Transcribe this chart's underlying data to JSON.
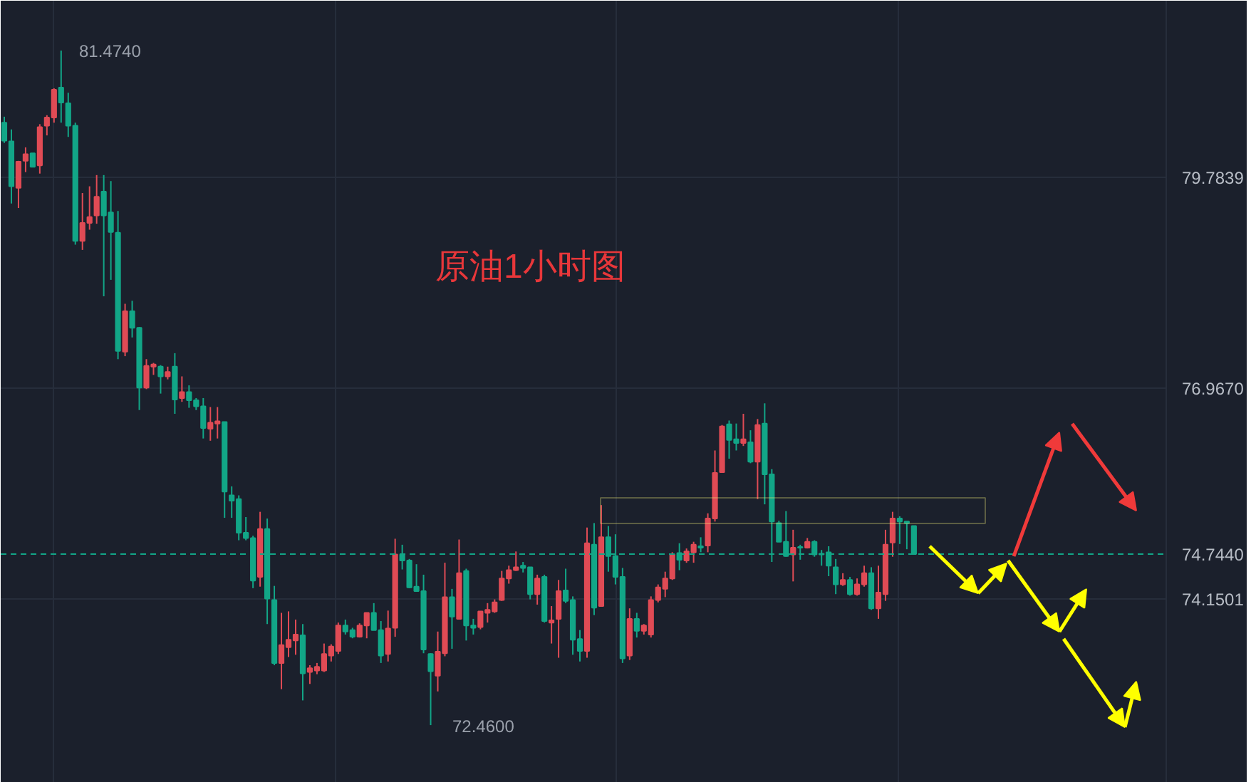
{
  "chart_data": {
    "type": "candlestick",
    "title": "原油1小时图",
    "categories": [
      null,
      null,
      null,
      null,
      null,
      null,
      null,
      null,
      null,
      null,
      null,
      null,
      null,
      null,
      null,
      null,
      null,
      null,
      null,
      null,
      null,
      null,
      null,
      null,
      null,
      null,
      null,
      null,
      null,
      null,
      null,
      null,
      null,
      null,
      null,
      null,
      null,
      null,
      null,
      null,
      null,
      null,
      null,
      null,
      null,
      null,
      null,
      null,
      null,
      null,
      null,
      null,
      null,
      null,
      null,
      null,
      null,
      null,
      null,
      null,
      null,
      null,
      null,
      null,
      null,
      null,
      null,
      null,
      null,
      null,
      null,
      null,
      null,
      null,
      null,
      null,
      null,
      null,
      null,
      null,
      null,
      null,
      null,
      null,
      null,
      null,
      null,
      null,
      null,
      null,
      null,
      null,
      null,
      null,
      null,
      null,
      null,
      null,
      null,
      null,
      null,
      null,
      null,
      null,
      null,
      null,
      null,
      null,
      null,
      null,
      null,
      null,
      null,
      null,
      null,
      null,
      null,
      null,
      null,
      null,
      null,
      null,
      null,
      null,
      null,
      null,
      null,
      null,
      null,
      null,
      null,
      null,
      null,
      null,
      null,
      null,
      null,
      null,
      null,
      null,
      null,
      null,
      null,
      null,
      null,
      null,
      null,
      null,
      null,
      null,
      null,
      null,
      null,
      null,
      null,
      null,
      null,
      null,
      null,
      null,
      null,
      null,
      null,
      null
    ],
    "ohlc": [
      [
        80.51,
        80.59,
        80.24,
        80.27
      ],
      [
        80.26,
        80.42,
        79.43,
        79.66
      ],
      [
        79.64,
        80.0,
        79.37,
        79.99
      ],
      [
        80.0,
        80.18,
        79.85,
        80.09
      ],
      [
        80.1,
        80.1,
        79.92,
        79.92
      ],
      [
        79.94,
        80.49,
        79.83,
        80.45
      ],
      [
        80.47,
        80.61,
        80.34,
        80.58
      ],
      [
        80.58,
        80.97,
        80.51,
        80.95
      ],
      [
        80.98,
        81.474,
        80.51,
        80.78
      ],
      [
        80.77,
        80.91,
        80.32,
        80.47
      ],
      [
        80.47,
        80.51,
        78.88,
        78.93
      ],
      [
        78.93,
        79.57,
        78.81,
        79.17
      ],
      [
        79.17,
        79.66,
        79.08,
        79.25
      ],
      [
        79.27,
        79.81,
        79.16,
        79.52
      ],
      [
        79.59,
        79.81,
        78.19,
        79.27
      ],
      [
        79.31,
        79.73,
        78.41,
        79.05
      ],
      [
        79.04,
        79.33,
        77.35,
        77.46
      ],
      [
        77.45,
        78.09,
        77.39,
        77.99
      ],
      [
        77.99,
        78.13,
        77.64,
        77.77
      ],
      [
        77.77,
        77.78,
        76.67,
        76.97
      ],
      [
        76.97,
        77.35,
        76.95,
        77.26
      ],
      [
        77.25,
        77.3,
        77.14,
        77.28
      ],
      [
        77.25,
        77.27,
        76.89,
        77.12
      ],
      [
        77.12,
        77.25,
        77.08,
        77.18
      ],
      [
        77.25,
        77.43,
        76.62,
        76.81
      ],
      [
        76.83,
        77.12,
        76.78,
        76.91
      ],
      [
        76.91,
        77.0,
        76.7,
        76.8
      ],
      [
        76.8,
        76.83,
        76.67,
        76.72
      ],
      [
        76.72,
        76.83,
        76.29,
        76.43
      ],
      [
        76.42,
        76.71,
        76.26,
        76.5
      ],
      [
        76.49,
        76.71,
        76.29,
        76.52
      ],
      [
        76.51,
        76.51,
        75.23,
        75.58
      ],
      [
        75.53,
        75.65,
        75.23,
        75.46
      ],
      [
        75.48,
        75.53,
        74.93,
        75.03
      ],
      [
        75.03,
        75.24,
        74.93,
        74.96
      ],
      [
        74.96,
        74.99,
        74.29,
        74.39
      ],
      [
        74.44,
        75.31,
        74.31,
        75.08
      ],
      [
        75.08,
        75.22,
        73.81,
        74.15
      ],
      [
        74.13,
        74.32,
        73.26,
        73.29
      ],
      [
        73.29,
        73.96,
        72.94,
        73.53
      ],
      [
        73.5,
        73.98,
        73.37,
        73.6
      ],
      [
        73.59,
        73.87,
        73.4,
        73.67
      ],
      [
        73.66,
        73.81,
        72.79,
        73.15
      ],
      [
        73.17,
        73.26,
        73.01,
        73.22
      ],
      [
        73.19,
        73.29,
        73.14,
        73.24
      ],
      [
        73.19,
        73.55,
        73.17,
        73.41
      ],
      [
        73.39,
        73.54,
        73.31,
        73.51
      ],
      [
        73.45,
        73.83,
        73.41,
        73.79
      ],
      [
        73.79,
        73.87,
        73.67,
        73.71
      ],
      [
        73.73,
        73.76,
        73.62,
        73.64
      ],
      [
        73.64,
        73.82,
        73.63,
        73.79
      ],
      [
        73.79,
        73.96,
        73.62,
        73.96
      ],
      [
        73.96,
        74.09,
        73.73,
        73.73
      ],
      [
        73.73,
        73.85,
        73.29,
        73.39
      ],
      [
        73.41,
        73.99,
        73.31,
        73.75
      ],
      [
        73.76,
        74.95,
        73.64,
        74.74
      ],
      [
        74.74,
        74.87,
        74.54,
        74.66
      ],
      [
        74.66,
        74.68,
        74.29,
        74.3
      ],
      [
        74.31,
        74.61,
        74.25,
        74.25
      ],
      [
        74.25,
        74.47,
        73.42,
        73.47
      ],
      [
        73.41,
        73.42,
        72.46,
        73.18
      ],
      [
        73.12,
        73.71,
        72.91,
        73.44
      ],
      [
        73.42,
        74.63,
        73.38,
        74.17
      ],
      [
        74.17,
        74.28,
        73.48,
        73.91
      ],
      [
        73.88,
        74.94,
        73.88,
        74.49
      ],
      [
        74.52,
        74.55,
        73.59,
        73.79
      ],
      [
        73.79,
        73.88,
        73.67,
        73.76
      ],
      [
        73.77,
        73.98,
        73.74,
        73.98
      ],
      [
        73.96,
        74.09,
        73.83,
        74.0
      ],
      [
        73.98,
        74.14,
        73.96,
        74.1
      ],
      [
        74.13,
        74.52,
        74.12,
        74.42
      ],
      [
        74.42,
        74.59,
        74.35,
        74.53
      ],
      [
        74.53,
        74.78,
        74.52,
        74.57
      ],
      [
        74.59,
        74.64,
        74.5,
        74.56
      ],
      [
        74.57,
        74.57,
        74.14,
        74.21
      ],
      [
        74.21,
        74.47,
        74.07,
        74.42
      ],
      [
        74.44,
        74.47,
        73.83,
        73.85
      ],
      [
        73.83,
        74.05,
        73.55,
        73.86
      ],
      [
        73.88,
        74.4,
        73.36,
        74.25
      ],
      [
        74.26,
        74.55,
        74.09,
        74.12
      ],
      [
        74.13,
        74.18,
        73.4,
        73.6
      ],
      [
        73.61,
        73.73,
        73.31,
        73.45
      ],
      [
        73.45,
        75.1,
        73.36,
        74.89
      ],
      [
        74.87,
        75.16,
        73.93,
        74.03
      ],
      [
        74.05,
        75.4,
        74.05,
        74.97
      ],
      [
        74.97,
        75.12,
        74.51,
        74.72
      ],
      [
        74.72,
        75.01,
        74.34,
        74.44
      ],
      [
        74.44,
        74.56,
        73.29,
        73.35
      ],
      [
        73.39,
        74.02,
        73.33,
        73.88
      ],
      [
        73.88,
        73.96,
        73.63,
        73.72
      ],
      [
        73.72,
        73.81,
        73.67,
        73.79
      ],
      [
        73.67,
        74.18,
        73.63,
        74.13
      ],
      [
        74.13,
        74.34,
        74.1,
        74.3
      ],
      [
        74.28,
        74.51,
        74.17,
        74.42
      ],
      [
        74.42,
        74.77,
        74.4,
        74.74
      ],
      [
        74.76,
        74.89,
        74.53,
        74.67
      ],
      [
        74.66,
        74.82,
        74.63,
        74.78
      ],
      [
        74.77,
        74.91,
        74.63,
        74.87
      ],
      [
        74.85,
        74.97,
        74.77,
        74.83
      ],
      [
        74.86,
        75.29,
        74.77,
        75.22
      ],
      [
        75.22,
        76.13,
        75.18,
        75.83
      ],
      [
        75.84,
        76.47,
        75.84,
        76.45
      ],
      [
        76.48,
        76.53,
        76.02,
        76.27
      ],
      [
        76.28,
        76.49,
        76.13,
        76.23
      ],
      [
        76.23,
        76.62,
        76.19,
        76.28
      ],
      [
        76.24,
        76.4,
        75.96,
        75.98
      ],
      [
        75.98,
        76.55,
        75.48,
        76.47
      ],
      [
        76.49,
        76.76,
        75.41,
        75.81
      ],
      [
        75.81,
        75.88,
        74.64,
        75.18
      ],
      [
        75.16,
        75.19,
        74.91,
        74.91
      ],
      [
        74.91,
        75.32,
        74.71,
        74.72
      ],
      [
        74.74,
        75.07,
        74.38,
        74.83
      ],
      [
        74.84,
        74.87,
        74.67,
        74.83
      ],
      [
        74.83,
        74.96,
        74.82,
        74.91
      ],
      [
        74.91,
        74.93,
        74.71,
        74.74
      ],
      [
        74.75,
        74.8,
        74.59,
        74.74
      ],
      [
        74.77,
        74.85,
        74.45,
        74.59
      ],
      [
        74.57,
        74.68,
        74.21,
        74.34
      ],
      [
        74.34,
        74.49,
        74.32,
        74.4
      ],
      [
        74.4,
        74.44,
        74.19,
        74.21
      ],
      [
        74.21,
        74.42,
        74.19,
        74.34
      ],
      [
        74.34,
        74.59,
        74.31,
        74.49
      ],
      [
        74.49,
        74.57,
        74.0,
        74.02
      ],
      [
        74.02,
        74.59,
        73.88,
        74.23
      ],
      [
        74.21,
        75.07,
        74.12,
        74.87
      ],
      [
        74.9,
        75.31,
        74.71,
        75.22
      ],
      [
        75.22,
        75.25,
        74.88,
        75.18
      ],
      [
        75.18,
        75.18,
        74.81,
        75.16
      ],
      [
        75.12,
        75.12,
        74.744,
        74.744
      ],
      null,
      null,
      null,
      null,
      null,
      null,
      null,
      null,
      null,
      null,
      null,
      null,
      null,
      null,
      null,
      null,
      null,
      null,
      null,
      null,
      null,
      null,
      null,
      null,
      null,
      null,
      null,
      null,
      null,
      null,
      null,
      null,
      null,
      null,
      null
    ],
    "colors": [
      "#12a687",
      "#12a687",
      "#e04b55",
      "#e04b55",
      "#12a687",
      "#e04b55",
      "#e04b55",
      "#e04b55",
      "#12a687",
      "#12a687",
      "#12a687",
      "#e04b55",
      "#e04b55",
      "#e04b55",
      "#12a687",
      "#12a687",
      "#12a687",
      "#e04b55",
      "#12a687",
      "#12a687",
      "#e04b55",
      "#e04b55",
      "#12a687",
      "#e04b55",
      "#12a687",
      "#e04b55",
      "#12a687",
      "#12a687",
      "#12a687",
      "#e04b55",
      "#e04b55",
      "#12a687",
      "#12a687",
      "#12a687",
      "#12a687",
      "#12a687",
      "#e04b55",
      "#12a687",
      "#12a687",
      "#e04b55",
      "#e04b55",
      "#e04b55",
      "#12a687",
      "#e04b55",
      "#e04b55",
      "#e04b55",
      "#e04b55",
      "#e04b55",
      "#12a687",
      "#12a687",
      "#e04b55",
      "#e04b55",
      "#12a687",
      "#12a687",
      "#e04b55",
      "#e04b55",
      "#12a687",
      "#12a687",
      "#12a687",
      "#12a687",
      "#12a687",
      "#e04b55",
      "#e04b55",
      "#12a687",
      "#e04b55",
      "#12a687",
      "#12a687",
      "#e04b55",
      "#e04b55",
      "#e04b55",
      "#e04b55",
      "#e04b55",
      "#e04b55",
      "#12a687",
      "#12a687",
      "#e04b55",
      "#12a687",
      "#e04b55",
      "#e04b55",
      "#12a687",
      "#12a687",
      "#12a687",
      "#e04b55",
      "#12a687",
      "#e04b55",
      "#12a687",
      "#12a687",
      "#12a687",
      "#e04b55",
      "#12a687",
      "#e04b55",
      "#e04b55",
      "#e04b55",
      "#e04b55",
      "#e04b55",
      "#12a687",
      "#e04b55",
      "#e04b55",
      "#12a687",
      "#e04b55",
      "#e04b55",
      "#e04b55",
      "#12a687",
      "#12a687",
      "#e04b55",
      "#12a687",
      "#e04b55",
      "#12a687",
      "#12a687",
      "#12a687",
      "#12a687",
      "#e04b55",
      "#12a687",
      "#e04b55",
      "#12a687",
      "#12a687",
      "#12a687",
      "#12a687",
      "#e04b55",
      "#12a687",
      "#e04b55",
      "#e04b55",
      "#12a687",
      "#e04b55",
      "#e04b55",
      "#e04b55",
      "#12a687",
      "#12a687",
      "#12a687",
      null,
      null,
      null,
      null,
      null,
      null,
      null,
      null,
      null,
      null,
      null,
      null,
      null,
      null,
      null,
      null,
      null,
      null,
      null,
      null,
      null,
      null,
      null,
      null,
      null,
      null,
      null,
      null,
      null,
      null,
      null,
      null,
      null,
      null,
      null
    ],
    "ylim": [
      71.69,
      82.14
    ],
    "yticks": [
      74.1501,
      {
        "value": 76.967,
        "label": "76.9670"
      },
      79.7839
    ],
    "ref_lines": [
      {
        "axis": "y",
        "value": 74.744,
        "label": "74.7440",
        "color": "#12a687",
        "line_style": "dashed"
      }
    ],
    "annotations": [
      "81.4740",
      "72.4600"
    ],
    "grid": true,
    "tick_labels": "y"
  }
}
